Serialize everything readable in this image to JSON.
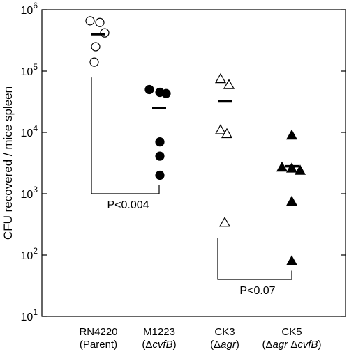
{
  "chart_data": {
    "type": "scatter",
    "ylabel": "CFU recovered / mice spleen",
    "yscale": "log",
    "ylim": [
      10,
      1000000
    ],
    "yticks": [
      {
        "value": 10,
        "base": "10",
        "exp": "1"
      },
      {
        "value": 100,
        "base": "10",
        "exp": "2"
      },
      {
        "value": 1000,
        "base": "10",
        "exp": "3"
      },
      {
        "value": 10000,
        "base": "10",
        "exp": "4"
      },
      {
        "value": 100000,
        "base": "10",
        "exp": "5"
      },
      {
        "value": 1000000,
        "base": "10",
        "exp": "6"
      }
    ],
    "grid": false,
    "groups": [
      {
        "label_line1": "RN4220",
        "label_line2": "(Parent)",
        "label_line2_parts": [
          {
            "text": "(Parent)",
            "italic": false
          }
        ],
        "marker": "circle",
        "filled": false,
        "points": [
          660000,
          620000,
          420000,
          250000,
          140000
        ],
        "mean": 400000
      },
      {
        "label_line1": "M1223",
        "label_line2": "(ΔcvfB)",
        "label_line2_parts": [
          {
            "text": "(Δ",
            "italic": false
          },
          {
            "text": "cvfB",
            "italic": true
          },
          {
            "text": ")",
            "italic": false
          }
        ],
        "marker": "circle",
        "filled": true,
        "points": [
          50000,
          45000,
          43000,
          7000,
          4100,
          2000
        ],
        "mean": 25000
      },
      {
        "label_line1": "CK3",
        "label_line2": "(Δagr)",
        "label_line2_parts": [
          {
            "text": "(Δ",
            "italic": false
          },
          {
            "text": "agr",
            "italic": true
          },
          {
            "text": ")",
            "italic": false
          }
        ],
        "marker": "triangle",
        "filled": false,
        "points": [
          75000,
          60000,
          11000,
          9500,
          340
        ],
        "mean": 32000
      },
      {
        "label_line1": "CK5",
        "label_line2": "(Δagr ΔcvfB)",
        "label_line2_parts": [
          {
            "text": "(Δ",
            "italic": false
          },
          {
            "text": "agr",
            "italic": true
          },
          {
            "text": " Δ",
            "italic": false
          },
          {
            "text": "cvfB",
            "italic": true
          },
          {
            "text": ")",
            "italic": false
          }
        ],
        "marker": "triangle",
        "filled": true,
        "points": [
          9000,
          2700,
          2600,
          2400,
          750,
          80
        ],
        "mean": 2800
      }
    ],
    "comparisons": [
      {
        "from_group": 0,
        "to_group": 1,
        "from_value": 140000,
        "to_value": 2000,
        "bracket_value": 1000,
        "label": "P<0.004"
      },
      {
        "from_group": 2,
        "to_group": 3,
        "from_value": 340,
        "to_value": 80,
        "bracket_value": 40,
        "label": "P<0.07"
      }
    ]
  }
}
